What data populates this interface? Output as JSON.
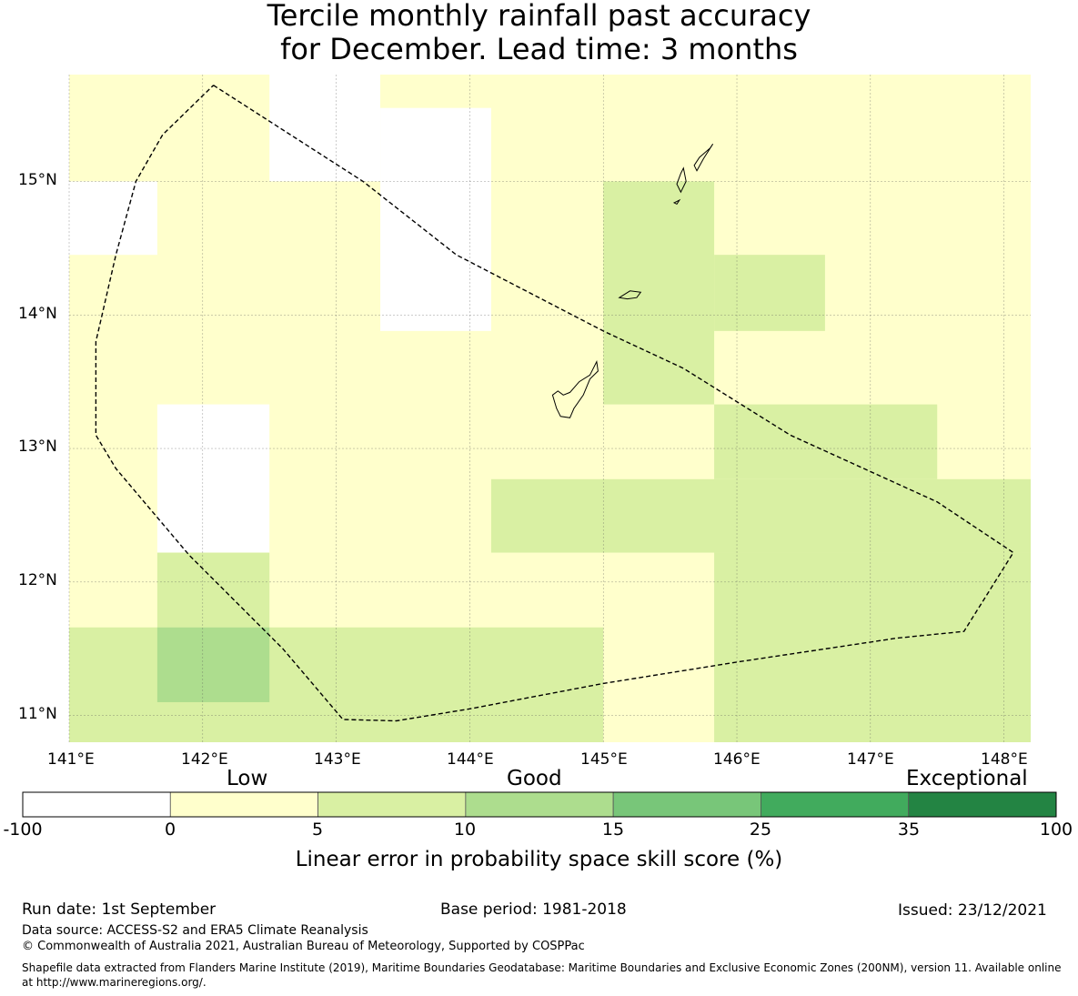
{
  "title_line1": "Tercile monthly rainfall past accuracy",
  "title_line2": "for December. Lead time: 3 months",
  "map": {
    "lon_range": [
      141.0,
      148.2
    ],
    "lat_range": [
      10.8,
      15.8
    ],
    "lon_ticks": [
      "141°E",
      "142°E",
      "143°E",
      "144°E",
      "145°E",
      "146°E",
      "147°E",
      "148°E"
    ],
    "lat_ticks": [
      "15°N",
      "14°N",
      "13°N",
      "12°N",
      "11°N"
    ],
    "skill_cells": [
      {
        "lon": [
          141.0,
          142.5
        ],
        "lat": [
          15.0,
          15.8
        ],
        "class": "0-5"
      },
      {
        "lon": [
          142.5,
          143.33
        ],
        "lat": [
          15.0,
          15.8
        ],
        "class": "-100-0"
      },
      {
        "lon": [
          143.33,
          148.2
        ],
        "lat": [
          15.55,
          15.8
        ],
        "class": "0-5"
      },
      {
        "lon": [
          141.0,
          141.66
        ],
        "lat": [
          14.45,
          15.0
        ],
        "class": "-100-0"
      },
      {
        "lon": [
          143.33,
          144.16
        ],
        "lat": [
          13.88,
          15.55
        ],
        "class": "-100-0"
      },
      {
        "lon": [
          145.0,
          145.83
        ],
        "lat": [
          13.33,
          15.0
        ],
        "class": "5-10"
      },
      {
        "lon": [
          145.83,
          146.66
        ],
        "lat": [
          13.88,
          14.45
        ],
        "class": "5-10"
      },
      {
        "lon": [
          141.66,
          142.5
        ],
        "lat": [
          12.22,
          13.33
        ],
        "class": "-100-0"
      },
      {
        "lon": [
          145.83,
          147.5
        ],
        "lat": [
          12.77,
          13.33
        ],
        "class": "5-10"
      },
      {
        "lon": [
          144.16,
          148.2
        ],
        "lat": [
          12.22,
          12.77
        ],
        "class": "5-10"
      },
      {
        "lon": [
          145.83,
          148.2
        ],
        "lat": [
          10.8,
          12.22
        ],
        "class": "5-10"
      },
      {
        "lon": [
          141.66,
          142.5
        ],
        "lat": [
          11.66,
          12.22
        ],
        "class": "5-10"
      },
      {
        "lon": [
          141.0,
          145.0
        ],
        "lat": [
          10.8,
          11.66
        ],
        "class": "5-10"
      },
      {
        "lon": [
          141.66,
          142.5
        ],
        "lat": [
          11.1,
          11.66
        ],
        "class": "10-15"
      }
    ],
    "eez_boundary": [
      [
        142.08,
        15.72
      ],
      [
        143.2,
        15.0
      ],
      [
        143.9,
        14.45
      ],
      [
        145.0,
        13.88
      ],
      [
        145.6,
        13.6
      ],
      [
        146.4,
        13.1
      ],
      [
        147.5,
        12.6
      ],
      [
        148.07,
        12.22
      ],
      [
        147.7,
        11.63
      ],
      [
        147.2,
        11.58
      ],
      [
        146.0,
        11.4
      ],
      [
        145.0,
        11.24
      ],
      [
        144.0,
        11.05
      ],
      [
        143.45,
        10.96
      ],
      [
        143.05,
        10.97
      ],
      [
        142.6,
        11.5
      ],
      [
        141.9,
        12.2
      ],
      [
        141.35,
        12.85
      ],
      [
        141.2,
        13.1
      ],
      [
        141.2,
        13.8
      ],
      [
        141.35,
        14.45
      ],
      [
        141.5,
        15.0
      ],
      [
        141.7,
        15.35
      ],
      [
        142.08,
        15.72
      ]
    ],
    "islands": [
      {
        "name": "Guam",
        "outline": [
          [
            144.95,
            13.65
          ],
          [
            144.9,
            13.55
          ],
          [
            144.82,
            13.5
          ],
          [
            144.75,
            13.42
          ],
          [
            144.7,
            13.4
          ],
          [
            144.66,
            13.43
          ],
          [
            144.62,
            13.4
          ],
          [
            144.65,
            13.3
          ],
          [
            144.68,
            13.24
          ],
          [
            144.75,
            13.23
          ],
          [
            144.78,
            13.3
          ],
          [
            144.85,
            13.4
          ],
          [
            144.9,
            13.52
          ],
          [
            144.96,
            13.58
          ],
          [
            144.95,
            13.65
          ]
        ]
      },
      {
        "name": "Rota",
        "outline": [
          [
            145.12,
            14.13
          ],
          [
            145.2,
            14.18
          ],
          [
            145.28,
            14.17
          ],
          [
            145.25,
            14.13
          ],
          [
            145.18,
            14.12
          ],
          [
            145.12,
            14.13
          ]
        ]
      },
      {
        "name": "Tinian",
        "outline": [
          [
            145.58,
            14.92
          ],
          [
            145.62,
            15.0
          ],
          [
            145.6,
            15.1
          ],
          [
            145.58,
            15.06
          ],
          [
            145.55,
            14.98
          ],
          [
            145.58,
            14.92
          ]
        ]
      },
      {
        "name": "Saipan",
        "outline": [
          [
            145.7,
            15.08
          ],
          [
            145.75,
            15.17
          ],
          [
            145.82,
            15.28
          ],
          [
            145.8,
            15.25
          ],
          [
            145.72,
            15.18
          ],
          [
            145.68,
            15.12
          ],
          [
            145.7,
            15.08
          ]
        ]
      },
      {
        "name": "Aguijan",
        "outline": [
          [
            145.53,
            14.84
          ],
          [
            145.57,
            14.86
          ],
          [
            145.55,
            14.83
          ],
          [
            145.53,
            14.84
          ]
        ]
      }
    ]
  },
  "colorbar": {
    "words": [
      "Low",
      "Good",
      "Exceptional"
    ],
    "classes": [
      "-100-0",
      "0-5",
      "5-10",
      "10-15",
      "15-25",
      "25-35",
      "35-100"
    ],
    "colors": [
      "#ffffff",
      "#ffffcc",
      "#d9f0a3",
      "#addd8e",
      "#78c679",
      "#41ab5d",
      "#238443"
    ],
    "ticks": [
      "-100",
      "0",
      "5",
      "10",
      "15",
      "25",
      "35",
      "100"
    ],
    "label": "Linear error in probability space skill score (%)"
  },
  "footer": {
    "run_date": "Run date: 1st September",
    "base_period": "Base period: 1981-2018",
    "issued": "Issued: 23/12/2021",
    "data_source": "Data source: ACCESS-S2 and ERA5 Climate Reanalysis",
    "copyright": "© Commonwealth of Australia 2021, Australian Bureau of Meteorology, Supported by COSPPac",
    "shapefile_line1": "Shapefile data extracted from Flanders Marine Institute (2019), Maritime Boundaries Geodatabase: Maritime Boundaries and Exclusive Economic Zones (200NM), version 11. Available online",
    "shapefile_line2": "at http://www.marineregions.org/."
  }
}
